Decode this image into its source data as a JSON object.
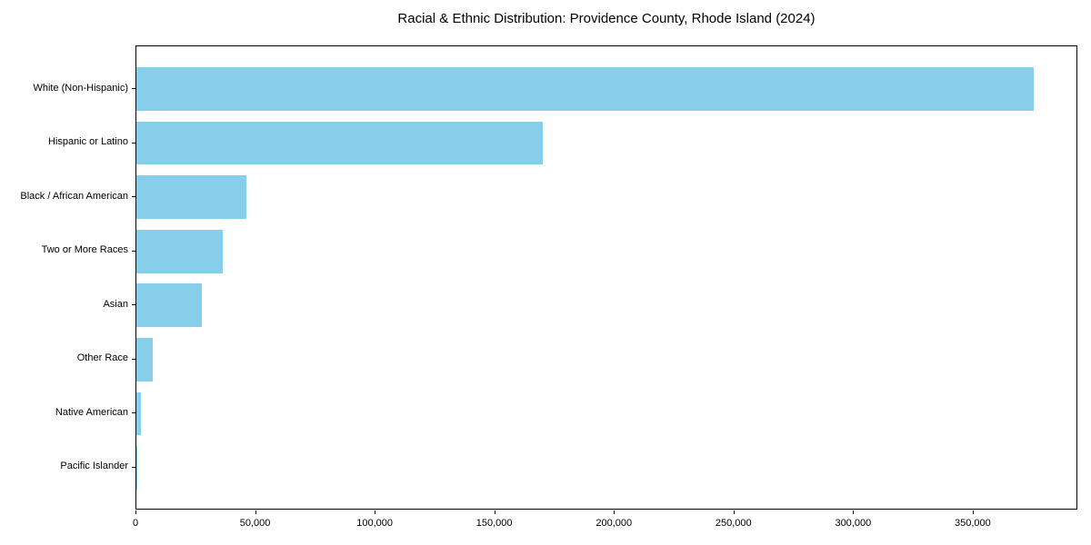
{
  "chart_data": {
    "type": "bar",
    "orientation": "horizontal",
    "title": "Racial & Ethnic Distribution: Providence County, Rhode Island (2024)",
    "categories": [
      "White (Non-Hispanic)",
      "Hispanic or Latino",
      "Black / African American",
      "Two or More Races",
      "Asian",
      "Other Race",
      "Native American",
      "Pacific Islander"
    ],
    "values": [
      375000,
      170000,
      46000,
      36000,
      27500,
      7000,
      1800,
      400
    ],
    "xlabel": "",
    "ylabel": "",
    "xlim": [
      0,
      393750
    ],
    "x_ticks": [
      0,
      50000,
      100000,
      150000,
      200000,
      250000,
      300000,
      350000
    ],
    "x_tick_labels": [
      "0",
      "50,000",
      "100,000",
      "150,000",
      "200,000",
      "250,000",
      "300,000",
      "350,000"
    ],
    "bar_color": "#87CEEB",
    "axis_color": "#000000",
    "text_color": "#000000",
    "background_color": "#FFFFFF",
    "grid": false,
    "legend_position": "none"
  }
}
